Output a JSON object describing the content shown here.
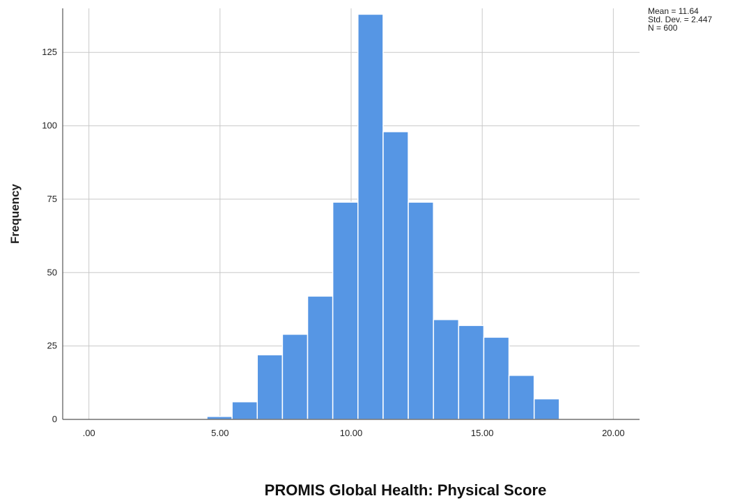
{
  "chart_data": {
    "type": "bar",
    "title": "",
    "xlabel": "PROMIS Global Health: Physical Score",
    "ylabel": "Frequency",
    "xlim": [
      -1,
      21
    ],
    "ylim": [
      0,
      140
    ],
    "grid": true,
    "x_ticks": [
      {
        "value": 0,
        "label": ".00"
      },
      {
        "value": 5,
        "label": "5.00"
      },
      {
        "value": 10,
        "label": "10.00"
      },
      {
        "value": 15,
        "label": "15.00"
      },
      {
        "value": 20,
        "label": "20.00"
      }
    ],
    "y_ticks": [
      {
        "value": 0,
        "label": "0"
      },
      {
        "value": 25,
        "label": "25"
      },
      {
        "value": 50,
        "label": "50"
      },
      {
        "value": 75,
        "label": "75"
      },
      {
        "value": 100,
        "label": "100"
      },
      {
        "value": 125,
        "label": "125"
      }
    ],
    "bin_width": 0.96,
    "bins": [
      {
        "start": 4.5,
        "value": 1
      },
      {
        "start": 5.46,
        "value": 6
      },
      {
        "start": 6.42,
        "value": 22
      },
      {
        "start": 7.38,
        "value": 29
      },
      {
        "start": 8.34,
        "value": 42
      },
      {
        "start": 9.3,
        "value": 74
      },
      {
        "start": 10.26,
        "value": 138
      },
      {
        "start": 11.22,
        "value": 98
      },
      {
        "start": 12.18,
        "value": 74
      },
      {
        "start": 13.14,
        "value": 34
      },
      {
        "start": 14.1,
        "value": 32
      },
      {
        "start": 15.06,
        "value": 28
      },
      {
        "start": 16.02,
        "value": 15
      },
      {
        "start": 16.98,
        "value": 7
      }
    ],
    "bar_color": "#5696e4",
    "stats": [
      "Mean = 11.64",
      "Std. Dev. = 2.447",
      "N = 600"
    ]
  }
}
